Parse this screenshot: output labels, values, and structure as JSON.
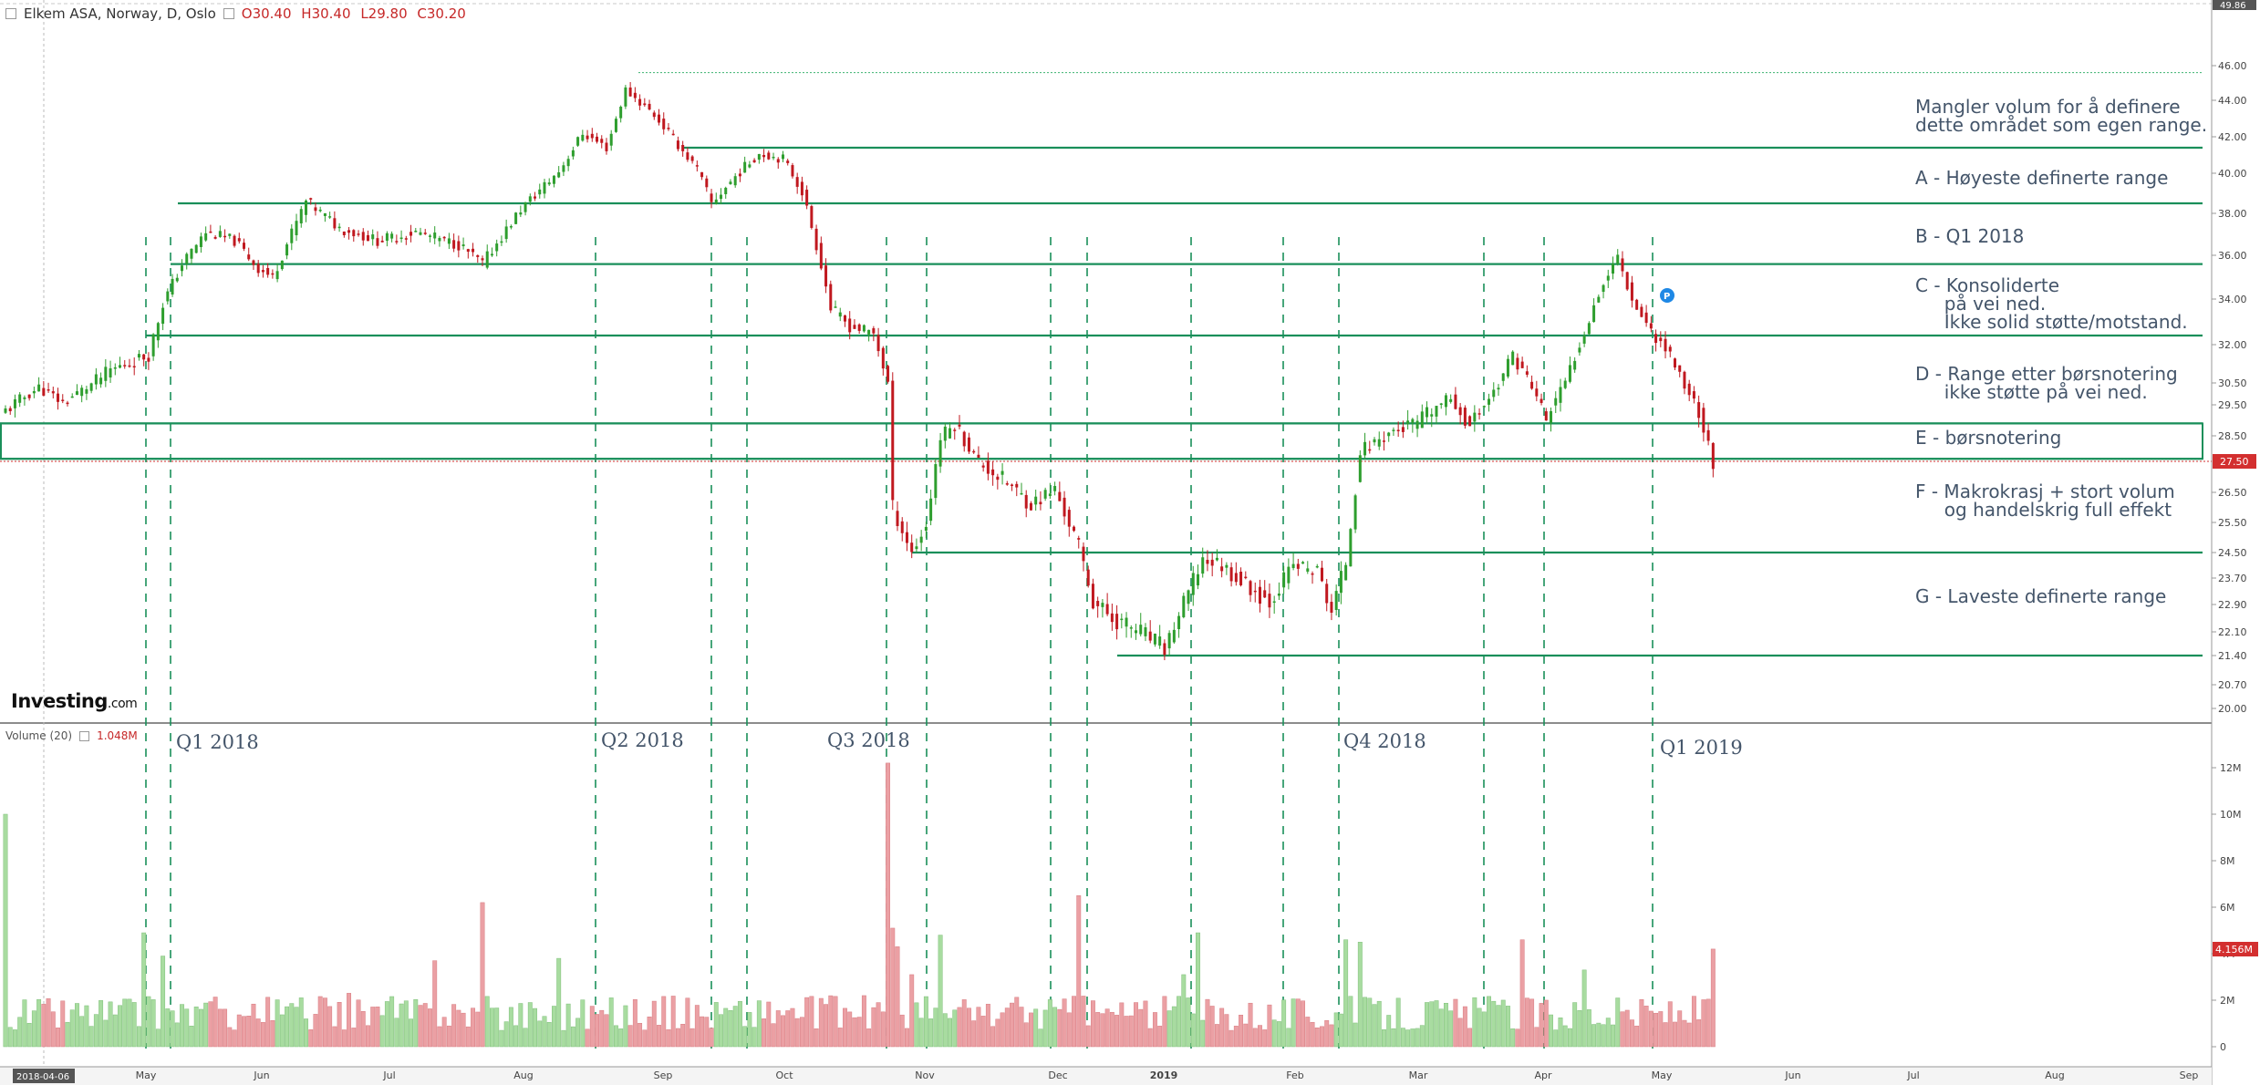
{
  "header": {
    "title": "Elkem ASA, Norway, D, Oslo",
    "open": "O30.40",
    "high": "H30.40",
    "low": "L29.80",
    "close": "C30.20"
  },
  "volume_header": {
    "label": "Volume (20)",
    "value": "1.048M"
  },
  "logo": {
    "main": "Investing",
    "suffix": ".com"
  },
  "badges": {
    "last_price": "27.50",
    "last_volume": "4.156M",
    "top_price": "49.86",
    "marker": "P",
    "start_date": "2018-04-06"
  },
  "annotations": [
    "Mangler volum for å definere\ndette området som egen range.",
    "A - Høyeste definerte range",
    "B - Q1 2018",
    "C - Konsoliderte\n     på vei ned.\n     Ikke solid støtte/motstand.",
    "D - Range etter børsnotering\n     ikke støtte på vei ned.",
    "E - børsnotering",
    "F - Makrokrasj + stort volum\n     og handelskrig full effekt",
    "G - Laveste definerte range"
  ],
  "quarter_labels": [
    "Q1 2018",
    "Q2 2018",
    "Q3 2018",
    "Q4 2018",
    "Q1 2019"
  ],
  "colors": {
    "up": "#2e9e2e",
    "down": "#c0181f",
    "level": "#1a8f5a",
    "vol_up": "#a8dca0",
    "vol_down": "#eba0a4"
  },
  "chart_data": {
    "type": "candlestick",
    "price_axis_ticks": [
      "46.00",
      "44.00",
      "42.00",
      "40.00",
      "38.00",
      "36.00",
      "34.00",
      "32.00",
      "30.50",
      "29.50",
      "28.50",
      "26.50",
      "25.50",
      "24.50",
      "23.70",
      "22.90",
      "22.10",
      "21.40",
      "20.70",
      "20.00"
    ],
    "volume_axis_ticks": [
      "12M",
      "10M",
      "8M",
      "6M",
      "4M",
      "2M",
      "0"
    ],
    "x_axis_labels": [
      "May",
      "Jun",
      "Jul",
      "Aug",
      "Sep",
      "Oct",
      "Nov",
      "Dec",
      "2019",
      "Feb",
      "Mar",
      "Apr",
      "May",
      "Jun",
      "Jul",
      "Aug",
      "Sep"
    ],
    "levels": [
      41.4,
      38.5,
      35.6,
      32.4,
      28.9,
      27.6,
      24.5,
      21.4
    ],
    "highest_high": 45.6,
    "anchors": [
      [
        0,
        29.3
      ],
      [
        7,
        30.3
      ],
      [
        12,
        29.6
      ],
      [
        22,
        31.0
      ],
      [
        30,
        31.6
      ],
      [
        33,
        33.8
      ],
      [
        37,
        35.6
      ],
      [
        42,
        37.1
      ],
      [
        48,
        36.7
      ],
      [
        53,
        35.4
      ],
      [
        56,
        35.0
      ],
      [
        63,
        38.6
      ],
      [
        70,
        37.3
      ],
      [
        78,
        36.7
      ],
      [
        86,
        37.1
      ],
      [
        95,
        36.5
      ],
      [
        100,
        35.6
      ],
      [
        108,
        38.2
      ],
      [
        116,
        40.1
      ],
      [
        121,
        42.2
      ],
      [
        126,
        41.4
      ],
      [
        130,
        44.6
      ],
      [
        136,
        43.2
      ],
      [
        140,
        41.9
      ],
      [
        145,
        40.2
      ],
      [
        148,
        38.5
      ],
      [
        154,
        40.1
      ],
      [
        158,
        41.1
      ],
      [
        163,
        40.8
      ],
      [
        167,
        39.1
      ],
      [
        171,
        35.6
      ],
      [
        173,
        33.6
      ],
      [
        177,
        32.8
      ],
      [
        182,
        32.5
      ],
      [
        185,
        30.5
      ],
      [
        186,
        26.0
      ],
      [
        190,
        24.5
      ],
      [
        193,
        25.4
      ],
      [
        196,
        28.4
      ],
      [
        199,
        28.9
      ],
      [
        204,
        27.5
      ],
      [
        210,
        26.8
      ],
      [
        215,
        26.1
      ],
      [
        220,
        26.6
      ],
      [
        225,
        24.7
      ],
      [
        228,
        23.0
      ],
      [
        232,
        22.5
      ],
      [
        238,
        22.1
      ],
      [
        243,
        21.6
      ],
      [
        247,
        22.9
      ],
      [
        251,
        24.3
      ],
      [
        255,
        24.1
      ],
      [
        260,
        23.5
      ],
      [
        265,
        23.0
      ],
      [
        270,
        24.1
      ],
      [
        275,
        23.9
      ],
      [
        278,
        22.7
      ],
      [
        281,
        24.2
      ],
      [
        284,
        27.9
      ],
      [
        290,
        28.6
      ],
      [
        296,
        28.9
      ],
      [
        303,
        29.8
      ],
      [
        307,
        28.8
      ],
      [
        312,
        30.1
      ],
      [
        316,
        31.6
      ],
      [
        319,
        30.7
      ],
      [
        323,
        29.0
      ],
      [
        327,
        30.5
      ],
      [
        331,
        32.6
      ],
      [
        334,
        34.3
      ],
      [
        338,
        36.0
      ],
      [
        341,
        34.0
      ],
      [
        345,
        32.6
      ],
      [
        349,
        31.6
      ],
      [
        352,
        30.4
      ],
      [
        355,
        29.3
      ],
      [
        358,
        27.5
      ]
    ]
  }
}
